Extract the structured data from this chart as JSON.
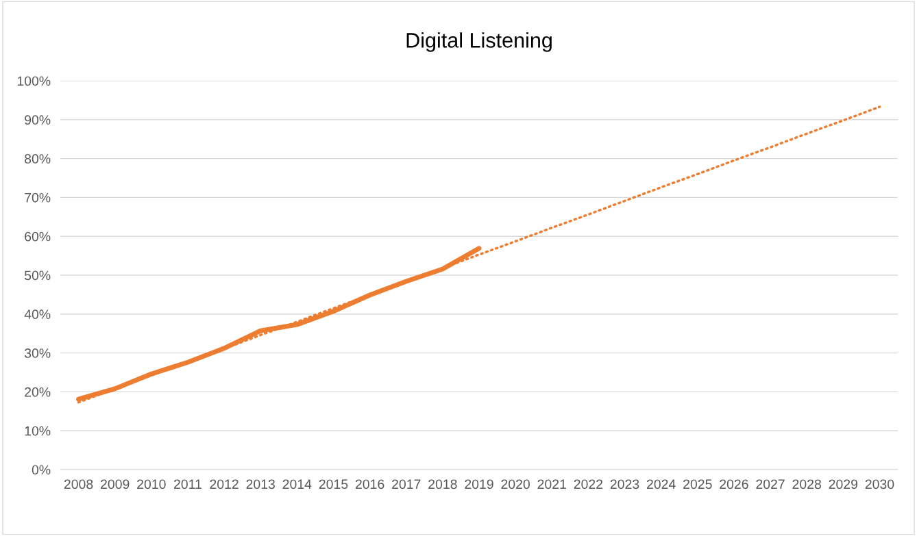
{
  "chart_data": {
    "type": "line",
    "title": "Digital Listening",
    "categories": [
      "2008",
      "2009",
      "2010",
      "2011",
      "2012",
      "2013",
      "2014",
      "2015",
      "2016",
      "2017",
      "2018",
      "2019",
      "2020",
      "2021",
      "2022",
      "2023",
      "2024",
      "2025",
      "2026",
      "2027",
      "2028",
      "2029",
      "2030"
    ],
    "series": [
      {
        "color": "#ed7d31",
        "values": [
          18.1,
          20.8,
          24.6,
          27.6,
          31.2,
          35.7,
          37.3,
          40.7,
          44.9,
          48.4,
          51.6,
          56.9,
          null,
          null,
          null,
          null,
          null,
          null,
          null,
          null,
          null,
          null,
          null
        ],
        "line_style": "solid"
      },
      {
        "type": "line",
        "color": "#ed7d31",
        "values": [
          17.3,
          20.8,
          24.2,
          27.7,
          31.1,
          34.6,
          38.0,
          41.5,
          44.9,
          48.4,
          51.8,
          55.3,
          58.7,
          62.2,
          65.6,
          69.1,
          72.6,
          76.0,
          79.5,
          82.9,
          86.4,
          89.8,
          93.3
        ],
        "line_style": "dotted"
      }
    ],
    "ylim": [
      0,
      100
    ],
    "yticks": [
      {
        "value": 0,
        "label": "0%"
      },
      {
        "value": 10,
        "label": "10%"
      },
      {
        "value": 20,
        "label": "20%"
      },
      {
        "value": 30,
        "label": "30%"
      },
      {
        "value": 40,
        "label": "40%"
      },
      {
        "value": 50,
        "label": "50%"
      },
      {
        "value": 60,
        "label": "60%"
      },
      {
        "value": 70,
        "label": "70%"
      },
      {
        "value": 80,
        "label": "80%"
      },
      {
        "value": 90,
        "label": "90%"
      },
      {
        "value": 100,
        "label": "100%"
      }
    ],
    "grid": "y",
    "legend": false,
    "marker": "none"
  }
}
